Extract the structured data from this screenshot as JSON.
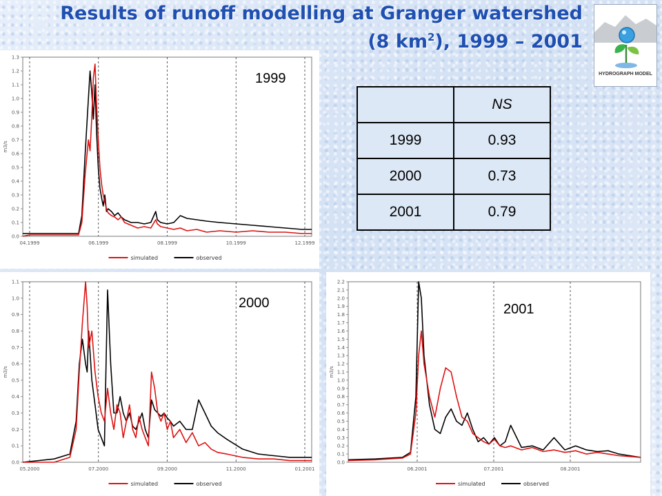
{
  "title": {
    "line1": "Results of runoff modelling at Granger watershed",
    "line2_pre": "(8 km",
    "line2_sup": "2",
    "line2_post": "), 1999 – 2001"
  },
  "logo": {
    "caption": "HYDROGRAPH MODEL"
  },
  "ns_table": {
    "header": [
      "",
      "NS"
    ],
    "rows": [
      {
        "year": "1999",
        "ns": "0.93"
      },
      {
        "year": "2000",
        "ns": "0.73"
      },
      {
        "year": "2001",
        "ns": "0.79"
      }
    ]
  },
  "colors": {
    "simulated": "#dd1111",
    "observed": "#000000",
    "title": "#1f4fb0"
  },
  "chart_data": [
    {
      "type": "line",
      "panel_label": "1999",
      "ylabel": "m3/s",
      "ylim": [
        0,
        1.3
      ],
      "yticks": [
        "0.0",
        "0.1",
        "0.2",
        "0.3",
        "0.4",
        "0.5",
        "0.6",
        "0.7",
        "0.8",
        "0.9",
        "1.0",
        "1.1",
        "1.2",
        "1.3"
      ],
      "xticks": [
        "04.1999",
        "06.1999",
        "08.1999",
        "10.1999",
        "12.1999"
      ],
      "xlim": [
        0,
        8.8
      ],
      "grid": "vertical-dashed",
      "legend": [
        "simulated",
        "observed"
      ],
      "legend_position": "bottom-center",
      "series": [
        {
          "name": "simulated",
          "x": [
            0,
            0.2,
            1.0,
            1.7,
            1.8,
            1.9,
            2.0,
            2.05,
            2.1,
            2.15,
            2.2,
            2.25,
            2.3,
            2.35,
            2.4,
            2.45,
            2.5,
            2.55,
            2.6,
            2.7,
            2.8,
            2.9,
            3.0,
            3.1,
            3.3,
            3.5,
            3.7,
            3.9,
            4.05,
            4.1,
            4.2,
            4.4,
            4.6,
            4.8,
            5.0,
            5.3,
            5.6,
            6.0,
            6.5,
            7.0,
            7.5,
            8.0,
            8.5,
            8.8
          ],
          "y": [
            0.0,
            0.01,
            0.01,
            0.01,
            0.1,
            0.45,
            0.7,
            0.62,
            0.85,
            1.15,
            1.25,
            0.95,
            0.7,
            0.5,
            0.38,
            0.3,
            0.25,
            0.2,
            0.17,
            0.15,
            0.14,
            0.12,
            0.14,
            0.1,
            0.08,
            0.06,
            0.07,
            0.06,
            0.12,
            0.09,
            0.07,
            0.06,
            0.05,
            0.06,
            0.04,
            0.05,
            0.03,
            0.04,
            0.03,
            0.04,
            0.03,
            0.03,
            0.02,
            0.02
          ]
        },
        {
          "name": "observed",
          "x": [
            0,
            0.2,
            1.0,
            1.7,
            1.8,
            1.9,
            2.0,
            2.05,
            2.1,
            2.15,
            2.2,
            2.25,
            2.3,
            2.35,
            2.4,
            2.45,
            2.5,
            2.55,
            2.6,
            2.7,
            2.8,
            2.9,
            3.0,
            3.1,
            3.3,
            3.5,
            3.7,
            3.9,
            4.05,
            4.1,
            4.2,
            4.4,
            4.6,
            4.8,
            5.0,
            5.3,
            5.6,
            6.0,
            6.5,
            7.0,
            7.5,
            8.0,
            8.5,
            8.8
          ],
          "y": [
            0.02,
            0.02,
            0.02,
            0.02,
            0.15,
            0.6,
            1.0,
            1.2,
            1.05,
            0.85,
            1.1,
            0.75,
            0.5,
            0.35,
            0.28,
            0.22,
            0.3,
            0.18,
            0.2,
            0.18,
            0.15,
            0.17,
            0.14,
            0.12,
            0.1,
            0.1,
            0.09,
            0.1,
            0.18,
            0.12,
            0.1,
            0.09,
            0.1,
            0.15,
            0.13,
            0.12,
            0.11,
            0.1,
            0.09,
            0.08,
            0.07,
            0.06,
            0.05,
            0.05
          ]
        }
      ]
    },
    {
      "type": "line",
      "panel_label": "2000",
      "ylabel": "m3/s",
      "ylim": [
        0,
        1.1
      ],
      "yticks": [
        "0.0",
        "0.1",
        "0.2",
        "0.3",
        "0.4",
        "0.5",
        "0.6",
        "0.7",
        "0.8",
        "0.9",
        "1.0",
        "1.1"
      ],
      "xticks": [
        "05.2000",
        "07.2000",
        "09.2000",
        "11.2000",
        "01.2001"
      ],
      "xlim": [
        0,
        9.2
      ],
      "grid": "vertical-dashed",
      "legend": [
        "simulated",
        "observed"
      ],
      "legend_position": "bottom-center",
      "series": [
        {
          "name": "simulated",
          "x": [
            0,
            1.0,
            1.5,
            1.7,
            1.8,
            1.9,
            2.0,
            2.05,
            2.1,
            2.2,
            2.3,
            2.4,
            2.5,
            2.6,
            2.7,
            2.8,
            2.9,
            3.0,
            3.1,
            3.2,
            3.3,
            3.4,
            3.5,
            3.6,
            3.7,
            3.8,
            3.9,
            4.0,
            4.1,
            4.2,
            4.3,
            4.4,
            4.5,
            4.6,
            4.7,
            4.8,
            5.0,
            5.2,
            5.4,
            5.6,
            5.8,
            6.0,
            6.2,
            6.5,
            7.0,
            7.5,
            8.0,
            8.5,
            9.2
          ],
          "y": [
            0.0,
            0.0,
            0.03,
            0.2,
            0.55,
            0.85,
            1.1,
            0.95,
            0.7,
            0.8,
            0.55,
            0.4,
            0.3,
            0.25,
            0.45,
            0.3,
            0.2,
            0.35,
            0.3,
            0.15,
            0.25,
            0.35,
            0.2,
            0.15,
            0.28,
            0.2,
            0.15,
            0.1,
            0.55,
            0.45,
            0.3,
            0.25,
            0.3,
            0.2,
            0.25,
            0.15,
            0.2,
            0.12,
            0.18,
            0.1,
            0.12,
            0.08,
            0.06,
            0.05,
            0.03,
            0.02,
            0.02,
            0.01,
            0.01
          ]
        },
        {
          "name": "observed",
          "x": [
            0,
            1.0,
            1.5,
            1.7,
            1.8,
            1.9,
            2.0,
            2.05,
            2.1,
            2.2,
            2.3,
            2.4,
            2.5,
            2.6,
            2.7,
            2.8,
            2.9,
            3.0,
            3.1,
            3.2,
            3.3,
            3.4,
            3.5,
            3.6,
            3.7,
            3.8,
            3.9,
            4.0,
            4.1,
            4.2,
            4.3,
            4.4,
            4.5,
            4.6,
            4.7,
            4.8,
            5.0,
            5.2,
            5.4,
            5.6,
            5.8,
            6.0,
            6.2,
            6.5,
            7.0,
            7.5,
            8.0,
            8.5,
            9.2
          ],
          "y": [
            0.0,
            0.02,
            0.05,
            0.25,
            0.6,
            0.75,
            0.6,
            0.55,
            0.8,
            0.5,
            0.35,
            0.2,
            0.15,
            0.1,
            1.05,
            0.6,
            0.3,
            0.3,
            0.4,
            0.3,
            0.25,
            0.3,
            0.22,
            0.2,
            0.25,
            0.3,
            0.2,
            0.15,
            0.38,
            0.32,
            0.3,
            0.28,
            0.3,
            0.27,
            0.25,
            0.22,
            0.25,
            0.2,
            0.2,
            0.38,
            0.3,
            0.22,
            0.18,
            0.14,
            0.08,
            0.05,
            0.04,
            0.03,
            0.03
          ]
        }
      ]
    },
    {
      "type": "line",
      "panel_label": "2001",
      "ylabel": "m3/s",
      "ylim": [
        0,
        2.2
      ],
      "yticks": [
        "0.0",
        "0.1",
        "0.2",
        "0.3",
        "0.4",
        "0.5",
        "0.6",
        "0.7",
        "0.8",
        "0.9",
        "1.0",
        "1.1",
        "1.2",
        "1.3",
        "1.4",
        "1.5",
        "1.6",
        "1.7",
        "1.8",
        "1.9",
        "2.0",
        "2.1",
        "2.2"
      ],
      "xticks": [
        "06.2001",
        "07.2001",
        "08.2001"
      ],
      "xlim": [
        0,
        5.4
      ],
      "grid": "vertical-dashed",
      "legend": [
        "simulated",
        "observed"
      ],
      "legend_position": "bottom-center",
      "series": [
        {
          "name": "simulated",
          "x": [
            0,
            0.5,
            1.0,
            1.15,
            1.25,
            1.3,
            1.35,
            1.4,
            1.5,
            1.6,
            1.7,
            1.8,
            1.9,
            2.0,
            2.1,
            2.2,
            2.3,
            2.4,
            2.5,
            2.6,
            2.7,
            2.8,
            2.9,
            3.0,
            3.2,
            3.4,
            3.6,
            3.8,
            4.0,
            4.2,
            4.4,
            4.6,
            4.8,
            5.0,
            5.2,
            5.4
          ],
          "y": [
            0.02,
            0.03,
            0.05,
            0.1,
            0.6,
            1.3,
            1.6,
            1.2,
            0.8,
            0.55,
            0.9,
            1.15,
            1.1,
            0.8,
            0.55,
            0.5,
            0.35,
            0.3,
            0.25,
            0.22,
            0.28,
            0.2,
            0.18,
            0.2,
            0.15,
            0.18,
            0.13,
            0.15,
            0.12,
            0.14,
            0.1,
            0.12,
            0.1,
            0.08,
            0.07,
            0.06
          ]
        },
        {
          "name": "observed",
          "x": [
            0,
            0.5,
            1.0,
            1.15,
            1.25,
            1.3,
            1.35,
            1.4,
            1.5,
            1.6,
            1.7,
            1.8,
            1.9,
            2.0,
            2.1,
            2.2,
            2.3,
            2.4,
            2.5,
            2.6,
            2.7,
            2.8,
            2.9,
            3.0,
            3.2,
            3.4,
            3.6,
            3.8,
            4.0,
            4.2,
            4.4,
            4.6,
            4.8,
            5.0,
            5.2,
            5.4
          ],
          "y": [
            0.03,
            0.04,
            0.06,
            0.12,
            0.8,
            2.2,
            2.0,
            1.3,
            0.7,
            0.4,
            0.35,
            0.55,
            0.65,
            0.5,
            0.45,
            0.6,
            0.4,
            0.25,
            0.3,
            0.22,
            0.3,
            0.2,
            0.25,
            0.45,
            0.18,
            0.2,
            0.15,
            0.3,
            0.15,
            0.2,
            0.15,
            0.13,
            0.14,
            0.1,
            0.08,
            0.06
          ]
        }
      ]
    }
  ]
}
